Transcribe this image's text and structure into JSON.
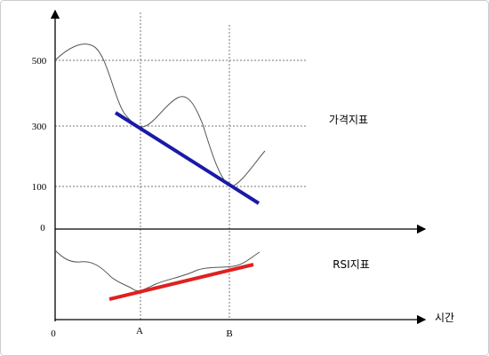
{
  "axis": {
    "y_labels": [
      500,
      300,
      100,
      0
    ],
    "x_labels": [
      "0",
      "A",
      "B"
    ],
    "x_title": "시간"
  },
  "labels": {
    "price": "가격지표",
    "rsi": "RSI지표"
  }
}
